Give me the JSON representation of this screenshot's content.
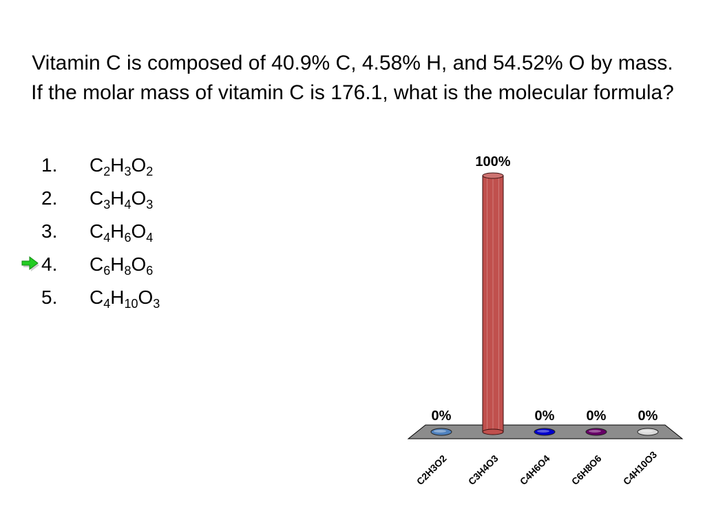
{
  "question": {
    "title": "Vitamin C is composed of 40.9% C, 4.58% H, and 54.52% O by mass.  If the molar mass of vitamin C is 176.1, what is the molecular formula?"
  },
  "answers": [
    {
      "number": "1.",
      "formula": "C2H3O2",
      "parts": [
        [
          "C",
          "2"
        ],
        [
          "H",
          "3"
        ],
        [
          "O",
          "2"
        ]
      ],
      "correct": false
    },
    {
      "number": "2.",
      "formula": "C3H4O3",
      "parts": [
        [
          "C",
          "3"
        ],
        [
          "H",
          "4"
        ],
        [
          "O",
          "3"
        ]
      ],
      "correct": false
    },
    {
      "number": "3.",
      "formula": "C4H6O4",
      "parts": [
        [
          "C",
          "4"
        ],
        [
          "H",
          "6"
        ],
        [
          "O",
          "4"
        ]
      ],
      "correct": false
    },
    {
      "number": "4.",
      "formula": "C6H8O6",
      "parts": [
        [
          "C",
          "6"
        ],
        [
          "H",
          "8"
        ],
        [
          "O",
          "6"
        ]
      ],
      "correct": true
    },
    {
      "number": "5.",
      "formula": "C4H10O3",
      "parts": [
        [
          "C",
          "4"
        ],
        [
          "H",
          "10"
        ],
        [
          "O",
          "3"
        ]
      ],
      "correct": false
    }
  ],
  "chart_data": {
    "type": "bar",
    "categories": [
      "C2H3O2",
      "C3H4O3",
      "C4H6O4",
      "C6H8O6",
      "C4H10O3"
    ],
    "values": [
      0,
      100,
      0,
      0,
      0
    ],
    "data_labels": [
      "0%",
      "100%",
      "0%",
      "0%",
      "0%"
    ],
    "ylim": [
      0,
      100
    ],
    "colors": [
      "#4f81bd",
      "#c0504d",
      "#0000cc",
      "#660066",
      "#d9d9d9"
    ],
    "floor_color": "#8c8c8c",
    "grid": false,
    "legend": "none"
  },
  "icons": {
    "correct_marker": "green-arrow-icon",
    "arrow_color": "#22cc22"
  }
}
